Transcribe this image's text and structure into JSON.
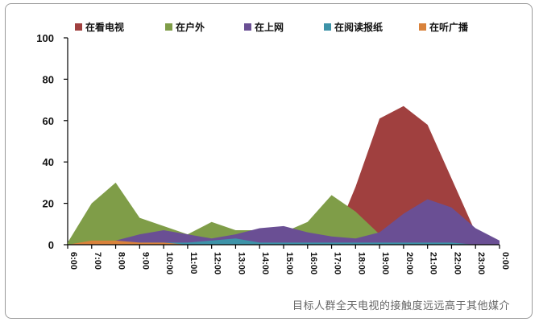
{
  "caption": "目标人群全天电视的接触度远远高于其他媒介",
  "chart_data": {
    "type": "area",
    "categories": [
      "6:00",
      "7:00",
      "8:00",
      "9:00",
      "10:00",
      "11:00",
      "12:00",
      "13:00",
      "14:00",
      "15:00",
      "16:00",
      "17:00",
      "18:00",
      "19:00",
      "20:00",
      "21:00",
      "22:00",
      "23:00",
      "0:00"
    ],
    "ylim": [
      0,
      100
    ],
    "yticks": [
      0,
      20,
      40,
      60,
      80,
      100
    ],
    "legend_position": "top",
    "series": [
      {
        "name": "在看电视",
        "color": "#a0403f",
        "values": [
          0,
          0,
          0,
          0,
          0,
          0,
          0,
          0,
          0,
          0,
          0,
          0,
          28,
          61,
          67,
          58,
          32,
          6,
          0
        ]
      },
      {
        "name": "在户外",
        "color": "#7f9d48",
        "values": [
          1,
          20,
          30,
          13,
          9,
          5,
          11,
          7,
          7,
          6,
          11,
          24,
          16,
          5,
          2,
          1,
          1,
          1,
          0
        ]
      },
      {
        "name": "在上网",
        "color": "#6a4f94",
        "values": [
          0,
          1,
          2,
          5,
          7,
          5,
          3,
          5,
          8,
          9,
          6,
          4,
          3,
          6,
          15,
          22,
          18,
          8,
          2
        ]
      },
      {
        "name": "在阅读报纸",
        "color": "#3d93a8",
        "values": [
          0,
          1,
          1,
          1,
          1,
          1,
          2,
          3,
          1,
          1,
          1,
          1,
          1,
          1,
          1,
          1,
          1,
          0,
          0
        ]
      },
      {
        "name": "在听广播",
        "color": "#d9823b",
        "values": [
          0,
          2,
          2,
          1,
          1,
          0,
          0,
          0,
          0,
          0,
          0,
          0,
          0,
          0,
          0,
          0,
          0,
          0,
          0
        ]
      }
    ]
  }
}
